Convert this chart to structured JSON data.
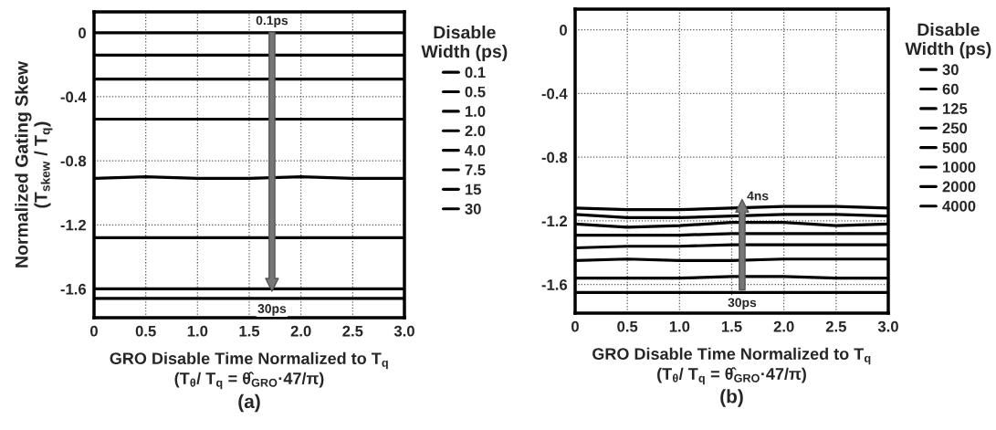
{
  "chart_data": [
    {
      "type": "line",
      "title": null,
      "xlabel": "GRO Disable Time Normalized to T$_{q}$\n(T$_{θ}$/ T$_{q}$ = θ̂$_{GRO}$·47/π)",
      "ylabel": "Normalized Gating Skew\n(T$_{skew}$ / T$_{q}$)",
      "legend_title": "Disable\nWidth (ps)",
      "x": [
        0,
        0.5,
        1,
        1.5,
        2,
        2.5,
        3
      ],
      "series": [
        {
          "name": "0.1",
          "color": "#000000",
          "values": [
            0,
            0,
            0,
            0,
            0,
            0,
            0
          ]
        },
        {
          "name": "0.5",
          "color": "#000000",
          "values": [
            -0.14,
            -0.14,
            -0.14,
            -0.14,
            -0.14,
            -0.14,
            -0.14
          ]
        },
        {
          "name": "1.0",
          "color": "#000000",
          "values": [
            -0.29,
            -0.29,
            -0.29,
            -0.29,
            -0.29,
            -0.29,
            -0.29
          ]
        },
        {
          "name": "2.0",
          "color": "#000000",
          "values": [
            -0.54,
            -0.54,
            -0.54,
            -0.54,
            -0.54,
            -0.54,
            -0.54
          ]
        },
        {
          "name": "4.0",
          "color": "#000000",
          "values": [
            -0.91,
            -0.9,
            -0.91,
            -0.91,
            -0.9,
            -0.91,
            -0.91
          ]
        },
        {
          "name": "7.5",
          "color": "#000000",
          "values": [
            -1.28,
            -1.28,
            -1.28,
            -1.28,
            -1.28,
            -1.28,
            -1.28
          ]
        },
        {
          "name": "15",
          "color": "#000000",
          "values": [
            -1.6,
            -1.6,
            -1.6,
            -1.6,
            -1.6,
            -1.6,
            -1.6
          ]
        },
        {
          "name": "30",
          "color": "#000000",
          "values": [
            -1.66,
            -1.66,
            -1.66,
            -1.66,
            -1.66,
            -1.66,
            -1.66
          ]
        }
      ],
      "xlim": [
        0,
        3
      ],
      "ylim": [
        -1.78,
        0.13
      ],
      "xticks": [
        0,
        0.5,
        {
          "value": 1,
          "label": "1.0"
        },
        1.5,
        {
          "value": 2,
          "label": "2.0"
        },
        2.5,
        {
          "value": 3,
          "label": "3.0"
        }
      ],
      "yticks": [
        0,
        -0.4,
        -0.8,
        -1.2,
        -1.6
      ],
      "grid": true,
      "legend": "right",
      "marker": "none",
      "line_style": "solid",
      "annotations": [
        {
          "text": "0.1ps",
          "x": 1.72,
          "y": 0.07
        },
        {
          "text": "30ps",
          "x": 1.72,
          "y": -1.73
        },
        "(a)"
      ]
    },
    {
      "type": "line",
      "title": null,
      "xlabel": "GRO Disable Time Normalized to T$_{q}$\n(T$_{θ}$/ T$_{q}$ = θ̂$_{GRO}$·47/π)",
      "legend_title": "Disable\nWidth (ps)",
      "x": [
        0,
        0.5,
        1,
        1.5,
        2,
        2.5,
        3
      ],
      "series": [
        {
          "name": "30",
          "color": "#000000",
          "values": [
            -1.12,
            -1.13,
            -1.13,
            -1.12,
            -1.11,
            -1.11,
            -1.12
          ]
        },
        {
          "name": "60",
          "color": "#000000",
          "values": [
            -1.16,
            -1.18,
            -1.18,
            -1.17,
            -1.16,
            -1.16,
            -1.17
          ]
        },
        {
          "name": "125",
          "color": "#000000",
          "values": [
            -1.22,
            -1.24,
            -1.23,
            -1.21,
            -1.21,
            -1.23,
            -1.22
          ]
        },
        {
          "name": "250",
          "color": "#000000",
          "values": [
            -1.29,
            -1.29,
            -1.29,
            -1.28,
            -1.28,
            -1.28,
            -1.28
          ]
        },
        {
          "name": "500",
          "color": "#000000",
          "values": [
            -1.37,
            -1.36,
            -1.36,
            -1.35,
            -1.35,
            -1.35,
            -1.35
          ]
        },
        {
          "name": "1000",
          "color": "#000000",
          "values": [
            -1.45,
            -1.44,
            -1.45,
            -1.45,
            -1.44,
            -1.44,
            -1.44
          ]
        },
        {
          "name": "2000",
          "color": "#000000",
          "values": [
            -1.56,
            -1.56,
            -1.56,
            -1.55,
            -1.55,
            -1.56,
            -1.56
          ]
        },
        {
          "name": "4000",
          "color": "#000000",
          "values": [
            -1.65,
            -1.65,
            -1.65,
            -1.65,
            -1.65,
            -1.65,
            -1.65
          ]
        }
      ],
      "xlim": [
        0,
        3
      ],
      "ylim": [
        -1.78,
        0.13
      ],
      "xticks": [
        0,
        0.5,
        {
          "value": 1,
          "label": "1.0"
        },
        1.5,
        {
          "value": 2,
          "label": "2.0"
        },
        2.5,
        {
          "value": 3,
          "label": "3.0"
        }
      ],
      "yticks": [
        0,
        -0.4,
        -0.8,
        -1.2,
        -1.6
      ],
      "grid": true,
      "legend": "right",
      "marker": "none",
      "line_style": "solid",
      "annotations": [
        {
          "text": "30ps",
          "x": 1.6,
          "y": -1.72
        },
        {
          "text": "4ns",
          "x": 1.75,
          "y": -1.05
        },
        "(b)"
      ]
    }
  ]
}
